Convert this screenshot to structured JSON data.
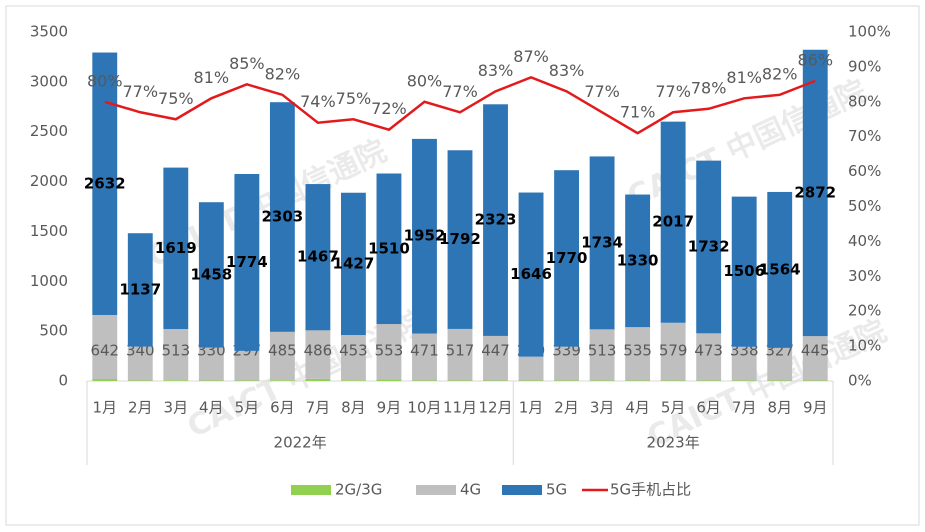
{
  "chart_data": {
    "type": "bar-line",
    "groups": [
      {
        "label": "2022年",
        "categories": [
          "1月",
          "2月",
          "3月",
          "4月",
          "5月",
          "6月",
          "7月",
          "8月",
          "9月",
          "10月",
          "11月",
          "12月"
        ]
      },
      {
        "label": "2023年",
        "categories": [
          "1月",
          "2月",
          "3月",
          "4月",
          "5月",
          "6月",
          "7月",
          "8月",
          "9月"
        ]
      }
    ],
    "series": [
      {
        "name": "2G/3G",
        "type": "bar",
        "color": "#92d050",
        "values": [
          20,
          5,
          8,
          5,
          5,
          8,
          22,
          8,
          18,
          5,
          5,
          5,
          5,
          5,
          5,
          5,
          5,
          5,
          5,
          5,
          5
        ]
      },
      {
        "name": "4G",
        "type": "bar",
        "color": "#bfbfbf",
        "show_labels": true,
        "values": [
          642,
          340,
          513,
          330,
          297,
          485,
          486,
          453,
          553,
          471,
          517,
          447,
          239,
          339,
          513,
          535,
          579,
          473,
          338,
          327,
          445
        ]
      },
      {
        "name": "5G",
        "type": "bar",
        "color": "#2e75b6",
        "show_labels": true,
        "values": [
          2632,
          1137,
          1619,
          1458,
          1774,
          2303,
          1467,
          1427,
          1510,
          1952,
          1792,
          2323,
          1646,
          1770,
          1734,
          1330,
          2017,
          1732,
          1506,
          1564,
          2872
        ]
      },
      {
        "name": "5G手机占比",
        "type": "line",
        "axis": "y2",
        "color": "#e31a1c",
        "values": [
          80,
          77,
          75,
          81,
          85,
          82,
          74,
          75,
          72,
          80,
          77,
          83,
          87,
          83,
          77,
          71,
          77,
          78,
          81,
          82,
          86
        ],
        "value_labels": [
          "80%",
          "77%",
          "75%",
          "81%",
          "85%",
          "82%",
          "74%",
          "75%",
          "72%",
          "80%",
          "77%",
          "83%",
          "87%",
          "83%",
          "77%",
          "71%",
          "77%",
          "78%",
          "81%",
          "82%",
          "86%"
        ]
      }
    ],
    "ylim": [
      0,
      3500
    ],
    "yticks": [
      0,
      500,
      1000,
      1500,
      2000,
      2500,
      3000,
      3500
    ],
    "y2lim": [
      0,
      100
    ],
    "y2ticks": [
      {
        "value": 0,
        "label": "0%"
      },
      {
        "value": 10,
        "label": "10%"
      },
      {
        "value": 20,
        "label": "20%"
      },
      {
        "value": 30,
        "label": "30%"
      },
      {
        "value": 40,
        "label": "40%"
      },
      {
        "value": 50,
        "label": "50%"
      },
      {
        "value": 60,
        "label": "60%"
      },
      {
        "value": 70,
        "label": "70%"
      },
      {
        "value": 80,
        "label": "80%"
      },
      {
        "value": 90,
        "label": "90%"
      },
      {
        "value": 100,
        "label": "100%"
      }
    ],
    "grid": false,
    "legend": "bottom",
    "stacked": true,
    "watermark": "CAICT 中国信通院"
  }
}
